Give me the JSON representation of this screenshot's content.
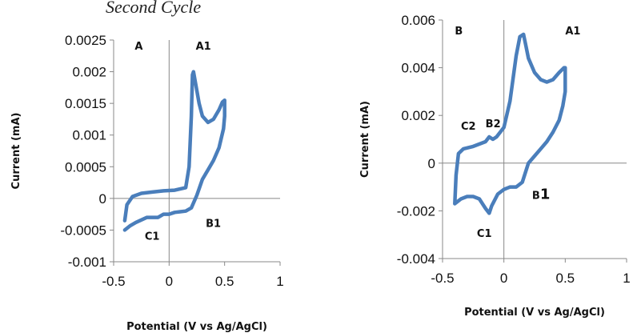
{
  "page_title": "Second Cycle",
  "series_color": "#4A7EBB",
  "chart_data": [
    {
      "type": "line",
      "panel_letter": "A",
      "xlabel": "Potential (V vs Ag/AgCl)",
      "ylabel": "Current (mA)",
      "xlim": [
        -0.5,
        1
      ],
      "ylim": [
        -0.001,
        0.0025
      ],
      "x_ticks": [
        "-0.5",
        "0",
        "0.5",
        "1"
      ],
      "x_tick_values": [
        -0.5,
        0,
        0.5,
        1
      ],
      "y_ticks": [
        "0.0025",
        "0.002",
        "0.0015",
        "0.001",
        "0.0005",
        "0",
        "-0.0005",
        "-0.001"
      ],
      "y_tick_values": [
        0.0025,
        0.002,
        0.0015,
        0.001,
        0.0005,
        0,
        -0.0005,
        -0.001
      ],
      "series": [
        {
          "x": [
            -0.4,
            -0.38,
            -0.33,
            -0.25,
            -0.15,
            -0.05,
            0.05,
            0.15,
            0.18,
            0.2,
            0.21,
            0.22,
            0.24,
            0.27,
            0.3,
            0.35,
            0.4,
            0.45,
            0.48,
            0.5,
            0.5,
            0.49,
            0.45,
            0.4,
            0.35,
            0.3,
            0.25,
            0.2,
            0.15,
            0.1,
            0.05,
            0.0,
            -0.05,
            -0.1,
            -0.15,
            -0.2,
            -0.3,
            -0.35,
            -0.4
          ],
          "y": [
            -0.00035,
            -0.0001,
            3e-05,
            8e-05,
            0.0001,
            0.00012,
            0.00013,
            0.00017,
            0.0005,
            0.0013,
            0.00195,
            0.002,
            0.0018,
            0.0015,
            0.0013,
            0.0012,
            0.00125,
            0.0014,
            0.00152,
            0.00155,
            0.0013,
            0.0011,
            0.0008,
            0.0006,
            0.00045,
            0.0003,
            5e-05,
            -0.00015,
            -0.0002,
            -0.00021,
            -0.00022,
            -0.00025,
            -0.00025,
            -0.0003,
            -0.0003,
            -0.0003,
            -0.00038,
            -0.00043,
            -0.0005
          ]
        }
      ],
      "annotations": [
        {
          "text": "A1",
          "x": 0.24,
          "y": 0.00235
        },
        {
          "text": "B1",
          "x": 0.33,
          "y": -0.00045
        },
        {
          "text": "C1",
          "x": -0.22,
          "y": -0.00065
        }
      ]
    },
    {
      "type": "line",
      "panel_letter": "B",
      "xlabel": "Potential (V vs Ag/AgCl)",
      "ylabel": "Current (mA)",
      "xlim": [
        -0.5,
        1
      ],
      "ylim": [
        -0.004,
        0.006
      ],
      "x_ticks": [
        "-0.5",
        "0",
        "0.5",
        "1"
      ],
      "x_tick_values": [
        -0.5,
        0,
        0.5,
        1
      ],
      "y_ticks": [
        "0.006",
        "0.004",
        "0.002",
        "0",
        "-0.002",
        "-0.004"
      ],
      "y_tick_values": [
        0.006,
        0.004,
        0.002,
        0,
        -0.002,
        -0.004
      ],
      "series": [
        {
          "x": [
            -0.4,
            -0.39,
            -0.37,
            -0.33,
            -0.25,
            -0.15,
            -0.12,
            -0.09,
            -0.06,
            0.0,
            0.05,
            0.1,
            0.13,
            0.16,
            0.18,
            0.2,
            0.25,
            0.3,
            0.35,
            0.4,
            0.45,
            0.49,
            0.5,
            0.5,
            0.48,
            0.45,
            0.4,
            0.35,
            0.3,
            0.25,
            0.2,
            0.15,
            0.1,
            0.05,
            0.0,
            -0.05,
            -0.1,
            -0.12,
            -0.15,
            -0.2,
            -0.25,
            -0.3,
            -0.35,
            -0.4
          ],
          "y": [
            -0.0017,
            -0.0005,
            0.0004,
            0.0006,
            0.0007,
            0.0009,
            0.0011,
            0.001,
            0.0011,
            0.0015,
            0.0026,
            0.0045,
            0.0053,
            0.0054,
            0.0049,
            0.0044,
            0.0038,
            0.0035,
            0.0034,
            0.0035,
            0.0038,
            0.004,
            0.004,
            0.003,
            0.0024,
            0.0018,
            0.0013,
            0.0009,
            0.0006,
            0.0003,
            0.0,
            -0.0008,
            -0.001,
            -0.001,
            -0.0011,
            -0.0013,
            -0.0018,
            -0.0021,
            -0.0019,
            -0.0015,
            -0.0014,
            -0.0014,
            -0.0015,
            -0.0017
          ]
        }
      ],
      "annotations": [
        {
          "text": "B",
          "x": -0.4,
          "y": 0.0054,
          "size": "normal"
        },
        {
          "text": "A1",
          "x": 0.5,
          "y": 0.0054,
          "size": "normal"
        },
        {
          "text": "C2",
          "x": -0.35,
          "y": 0.0014,
          "size": "normal"
        },
        {
          "text": "B2",
          "x": -0.15,
          "y": 0.0015,
          "size": "normal"
        },
        {
          "text": "B1",
          "x": 0.23,
          "y": -0.0015,
          "size": "b1"
        },
        {
          "text": "C1",
          "x": -0.22,
          "y": -0.0031,
          "size": "normal"
        }
      ]
    }
  ]
}
